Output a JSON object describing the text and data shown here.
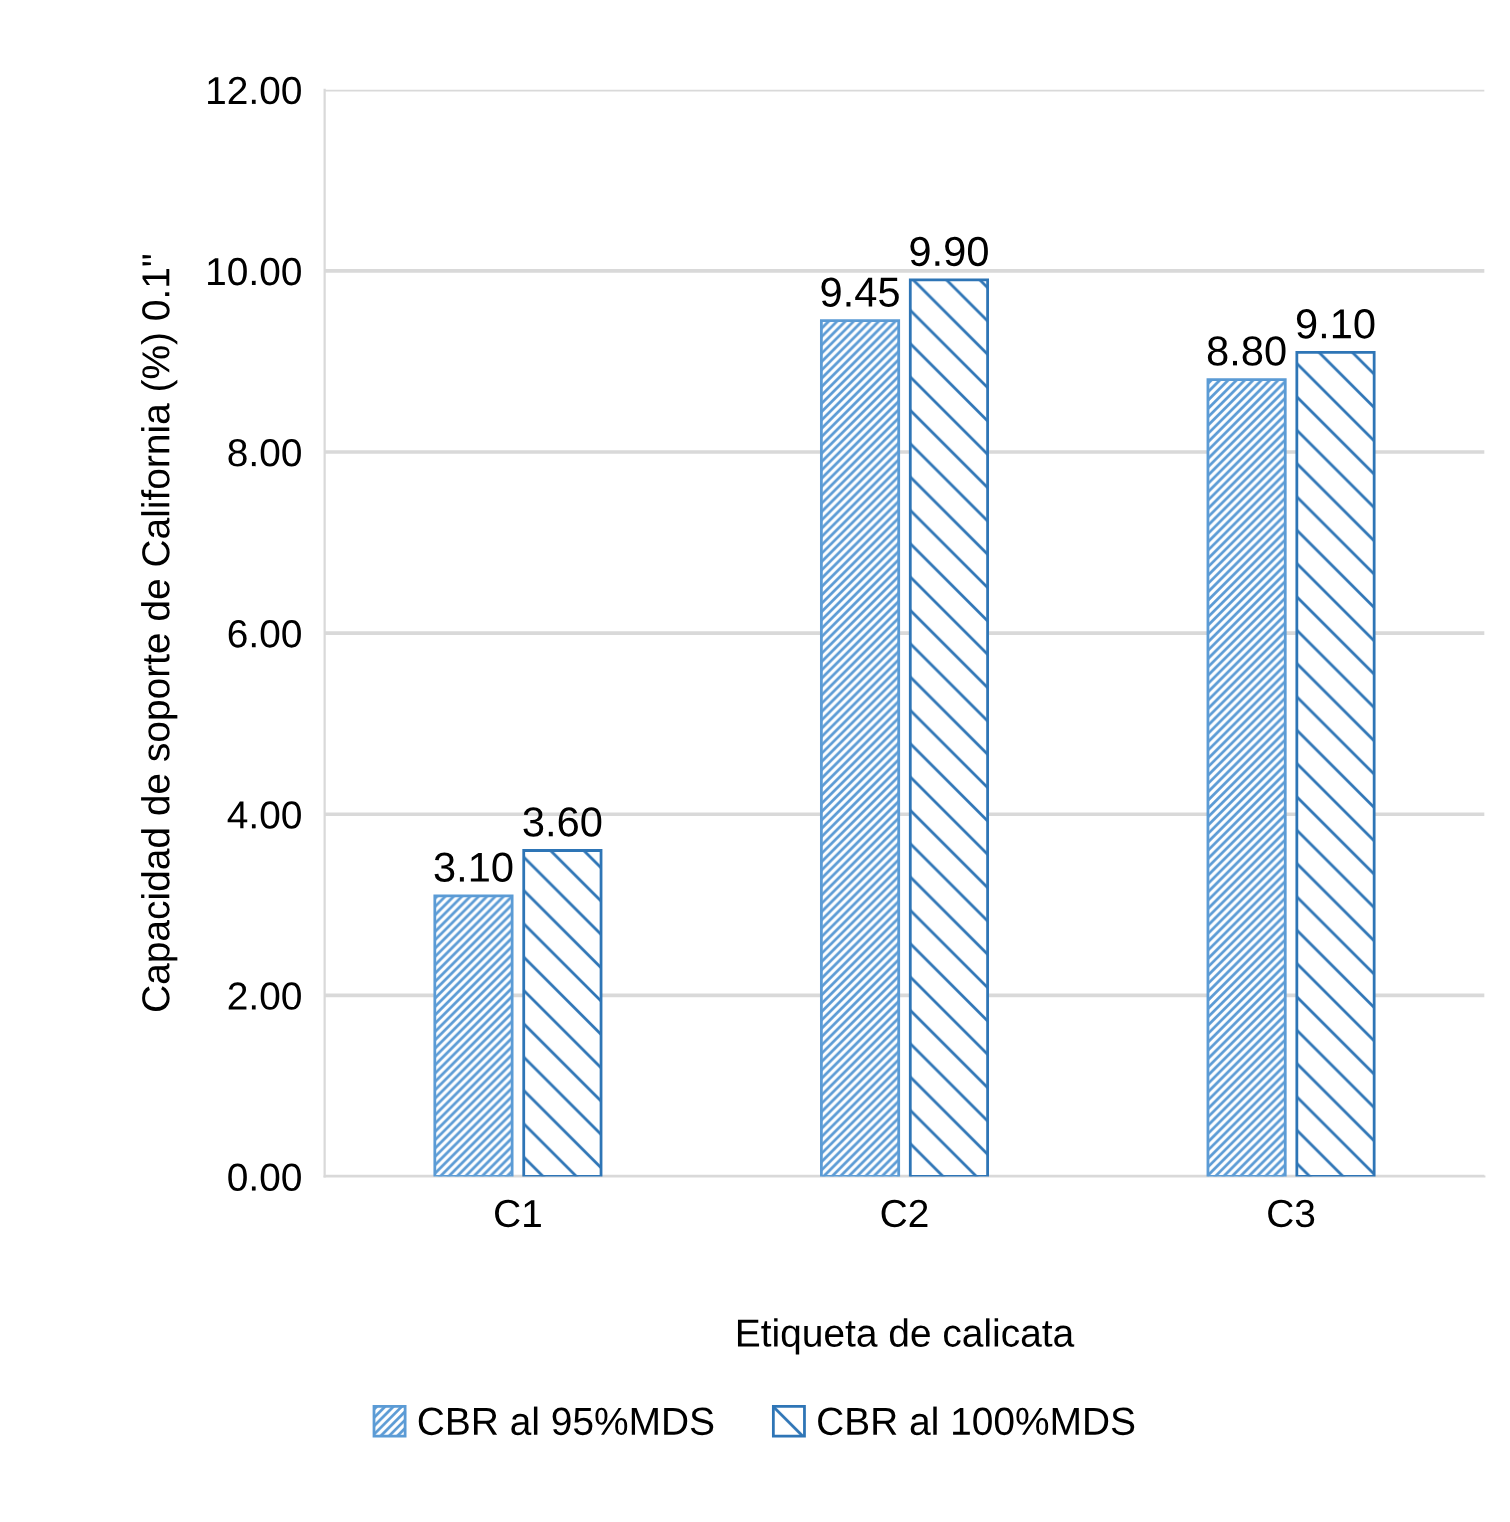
{
  "chart_data": {
    "type": "bar",
    "xlabel": "Etiqueta de calicata",
    "ylabel": "Capacidad de soporte de California (%) 0.1\"",
    "categories": [
      "C1",
      "C2",
      "C3"
    ],
    "series": [
      {
        "name": "CBR al 95%MDS",
        "color": "#5b9bd5",
        "values": [
          3.1,
          9.45,
          8.8
        ]
      },
      {
        "name": "CBR al 100%MDS",
        "color": "#2e75b6",
        "values": [
          3.6,
          9.9,
          9.1
        ]
      }
    ],
    "ylim": [
      0,
      12
    ],
    "yticks": [
      {
        "value": 0,
        "label": "0.00"
      },
      {
        "value": 2,
        "label": "2.00"
      },
      {
        "value": 4,
        "label": "4.00"
      },
      {
        "value": 6,
        "label": "6.00"
      },
      {
        "value": 8,
        "label": "8.00"
      },
      {
        "value": 10,
        "label": "10.00"
      },
      {
        "value": 12,
        "label": "12.00"
      }
    ],
    "value_labels": [
      [
        "3.10",
        "9.45",
        "8.80"
      ],
      [
        "3.60",
        "9.90",
        "9.10"
      ]
    ],
    "grid": "y",
    "legend": "bottom"
  }
}
